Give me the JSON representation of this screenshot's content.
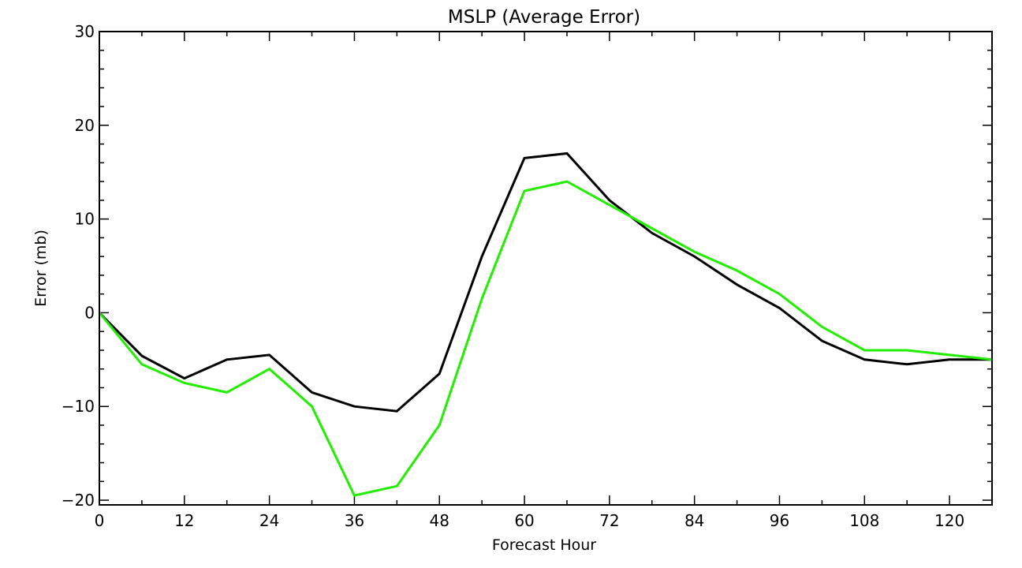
{
  "chart_data": {
    "type": "line",
    "title": "MSLP (Average Error)",
    "xlabel": "Forecast Hour",
    "ylabel": "Error (mb)",
    "xlim": [
      0,
      126
    ],
    "ylim": [
      -20.5,
      30
    ],
    "x_ticks": [
      "0",
      "12",
      "24",
      "36",
      "48",
      "60",
      "72",
      "84",
      "96",
      "108",
      "120"
    ],
    "y_ticks": [
      "30",
      "20",
      "10",
      "0",
      "−10",
      "−20"
    ],
    "x": [
      0,
      6,
      12,
      18,
      24,
      30,
      36,
      42,
      48,
      54,
      60,
      66,
      72,
      78,
      84,
      90,
      96,
      102,
      108,
      114,
      120,
      126
    ],
    "series": [
      {
        "color": "#000000",
        "values": [
          0,
          -4.6,
          -7,
          -5,
          -4.5,
          -8.5,
          -10,
          -10.5,
          -6.5,
          6,
          16.5,
          17,
          12,
          8.5,
          6,
          3,
          0.5,
          -3,
          -5,
          -5.5,
          -5,
          -5
        ]
      },
      {
        "color": "#22ee00",
        "values": [
          0,
          -5.5,
          -7.5,
          -8.5,
          -6,
          -10,
          -19.5,
          -18.5,
          -12,
          1.5,
          13,
          14,
          11.5,
          9,
          6.5,
          4.5,
          2,
          -1.5,
          -4,
          -4,
          -4.5,
          -5
        ]
      }
    ]
  }
}
